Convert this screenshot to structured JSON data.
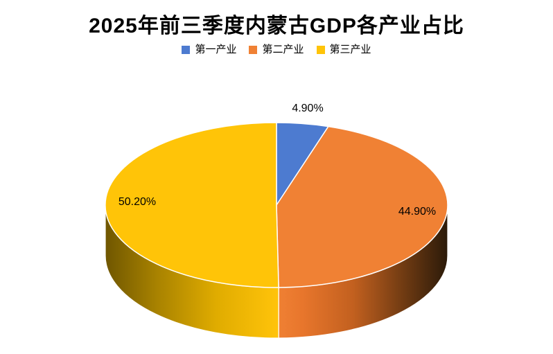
{
  "page": {
    "background": "#FFFFFF",
    "text_color": "#000000"
  },
  "chart_data": {
    "type": "pie",
    "style": "3d-pie",
    "title": "2025年前三季度内蒙古GDP各产业占比",
    "legend_position": "top",
    "start_angle_deg": 0,
    "direction": "clockwise",
    "label_format": "percent",
    "categories": [
      "第一产业",
      "第二产业",
      "第三产业"
    ],
    "values": [
      4.9,
      44.9,
      50.2
    ],
    "slices": [
      {
        "name": "第一产业",
        "value": 4.9,
        "label": "4.90%",
        "color": "#4D7BD0"
      },
      {
        "name": "第二产业",
        "value": 44.9,
        "label": "44.90%",
        "color": "#F08134",
        "wall_stops": [
          [
            0,
            "#2B1A09"
          ],
          [
            0.25,
            "#6E3A12"
          ],
          [
            0.55,
            "#C2601F"
          ],
          [
            0.85,
            "#E8762C"
          ],
          [
            1,
            "#F08134"
          ]
        ]
      },
      {
        "name": "第三产业",
        "value": 50.2,
        "label": "50.20%",
        "color": "#FFC408",
        "wall_stops": [
          [
            0,
            "#6F5600"
          ],
          [
            0.3,
            "#A88200"
          ],
          [
            0.65,
            "#E0AC00"
          ],
          [
            1,
            "#FFC30A"
          ]
        ]
      }
    ]
  }
}
